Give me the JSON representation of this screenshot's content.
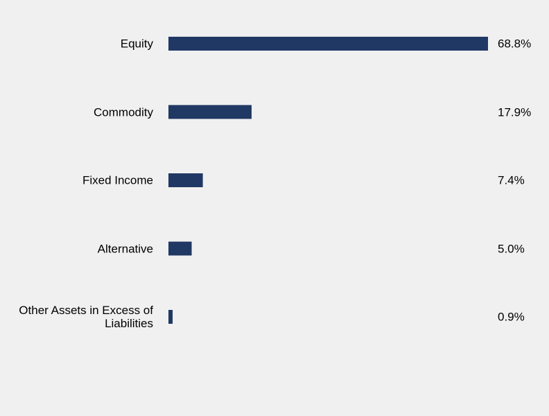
{
  "chart_data": {
    "type": "bar",
    "orientation": "horizontal",
    "categories": [
      "Equity",
      "Commodity",
      "Fixed Income",
      "Alternative",
      "Other Assets in Excess of Liabilities"
    ],
    "values": [
      68.8,
      17.9,
      7.4,
      5.0,
      0.9
    ],
    "value_labels": [
      "68.8%",
      "17.9%",
      "7.4%",
      "5.0%",
      "0.9%"
    ],
    "color": "#203864"
  }
}
